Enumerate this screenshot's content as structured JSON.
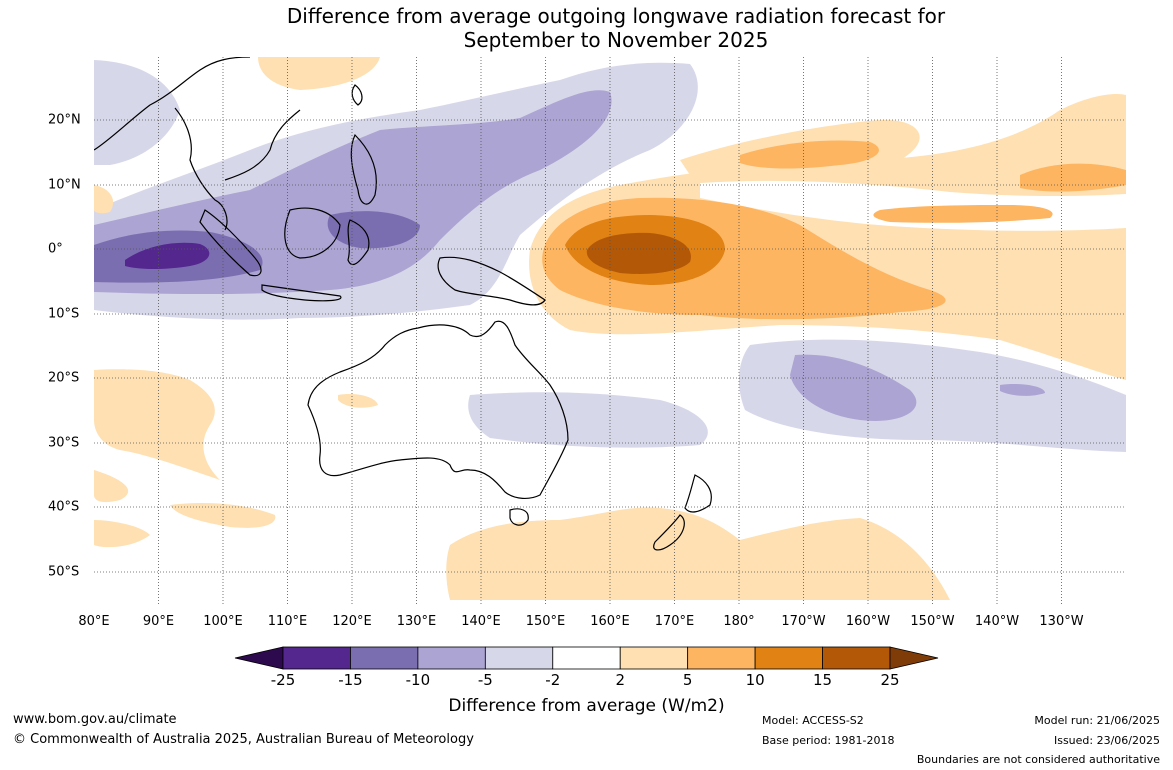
{
  "title": {
    "line1": "Difference from average outgoing longwave radiation forecast for",
    "line2": "September to November 2025"
  },
  "map": {
    "lon_labels": [
      "80°E",
      "90°E",
      "100°E",
      "110°E",
      "120°E",
      "130°E",
      "140°E",
      "150°E",
      "160°E",
      "170°E",
      "180°",
      "170°W",
      "160°W",
      "150°W",
      "140°W",
      "130°W"
    ],
    "lat_labels": [
      "20°N",
      "10°N",
      "0°",
      "10°S",
      "20°S",
      "30°S",
      "40°S",
      "50°S"
    ]
  },
  "colorbar": {
    "ticks": [
      "-25",
      "-15",
      "-10",
      "-5",
      "-2",
      "2",
      "5",
      "10",
      "15",
      "25"
    ],
    "colors": {
      "below_min": "#2d0a4e",
      "b1": "#54278f",
      "b2": "#7b6eb0",
      "b3": "#aca4d2",
      "b4": "#d7d7ea",
      "b5": "#ffffff",
      "b6": "#fee0b2",
      "b7": "#fdb561",
      "b8": "#e08214",
      "b9": "#b35806",
      "above_max": "#7f3b08"
    },
    "title": "Difference from average (W/m2)"
  },
  "footer": {
    "url": "www.bom.gov.au/climate",
    "copyright": "© Commonwealth of Australia 2025, Australian Bureau of Meteorology",
    "model": "Model: ACCESS-S2",
    "base_period": "Base period: 1981-2018",
    "model_run": "Model run: 21/06/2025",
    "issued": "Issued: 23/06/2025",
    "disclaimer": "Boundaries are not considered authoritative"
  }
}
